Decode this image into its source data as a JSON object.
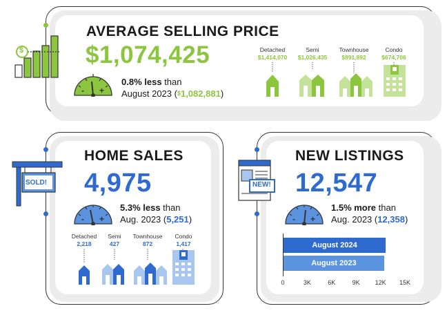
{
  "colors": {
    "green": "#8cc63f",
    "blue": "#2f6bcf",
    "light_blue": "#5b93df",
    "dark": "#1a1a1a"
  },
  "avg": {
    "title": "AVERAGE SELLING PRICE",
    "value": "$1,074,425",
    "change_bold": "0.8% less",
    "change_rest": " than",
    "prev_text": "August 2023 (",
    "prev_dollar": "$",
    "prev_value": "1,082,881",
    "prev_close": ")",
    "icon_dollar": "$",
    "types": [
      {
        "label": "Detached",
        "value": "$1,414,070"
      },
      {
        "label": "Semi",
        "value": "$1,026,435"
      },
      {
        "label": "Townhouse",
        "value": "$891,892"
      },
      {
        "label": "Condo",
        "value": "$674,706"
      }
    ]
  },
  "sales": {
    "title": "HOME SALES",
    "value": "4,975",
    "sign": "SOLD!",
    "change_bold": "5.3% less",
    "change_rest": " than",
    "prev_text": "Aug. 2023 (",
    "prev_value": "5,251",
    "prev_close": ")",
    "types": [
      {
        "label": "Detached",
        "value": "2,218"
      },
      {
        "label": "Semi",
        "value": "427"
      },
      {
        "label": "Townhouse",
        "value": "872"
      },
      {
        "label": "Condo",
        "value": "1,417"
      }
    ]
  },
  "listings": {
    "title": "NEW LISTINGS",
    "value": "12,547",
    "badge": "NEW!",
    "change_bold": "1.5% more",
    "change_rest": " than",
    "prev_text": "Aug. 2023 (",
    "prev_value": "12,358",
    "prev_close": ")"
  },
  "gauge": {
    "minus": "-",
    "plus": "+"
  },
  "chart_data": {
    "type": "bar",
    "orientation": "horizontal",
    "categories": [
      "August 2024",
      "August 2023"
    ],
    "values": [
      12547,
      12358
    ],
    "xlim": [
      0,
      15000
    ],
    "xticks": [
      "0",
      "3K",
      "6K",
      "9K",
      "12K",
      "15K"
    ],
    "colors": [
      "#2f6bcf",
      "#5b93df"
    ]
  }
}
